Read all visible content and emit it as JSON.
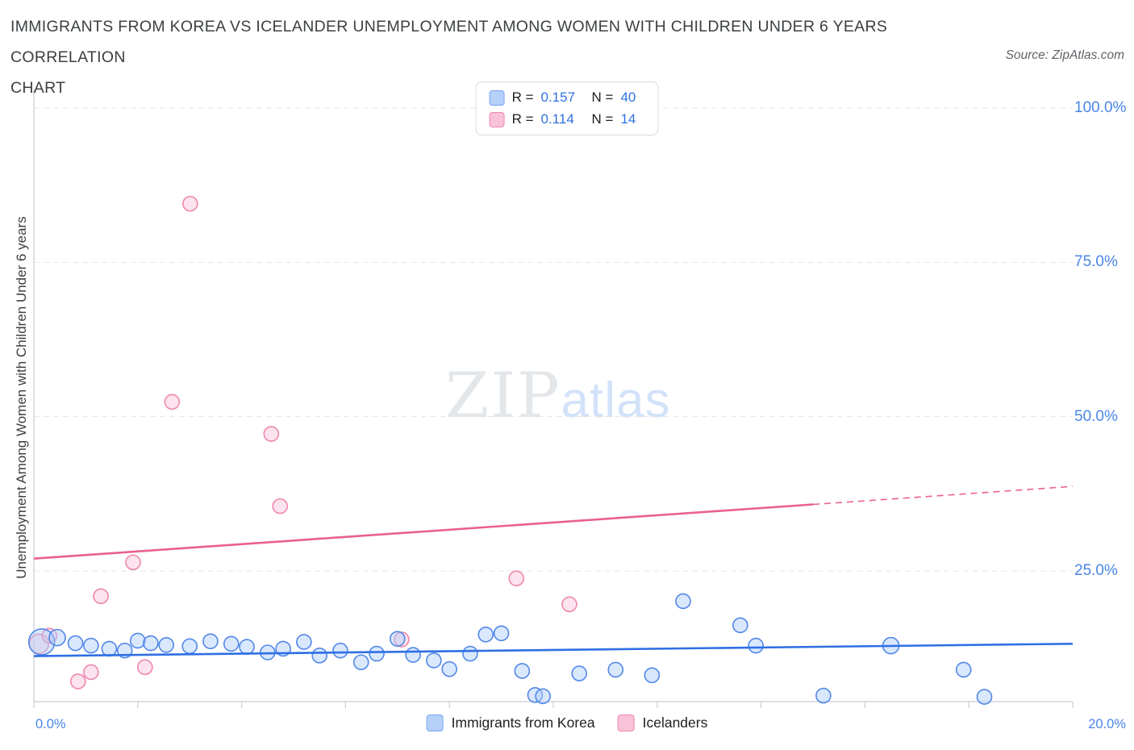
{
  "header": {
    "title_line1": "IMMIGRANTS FROM KOREA VS ICELANDER UNEMPLOYMENT AMONG WOMEN WITH CHILDREN UNDER 6 YEARS CORRELATION",
    "title_line2": "CHART",
    "source": "Source: ZipAtlas.com"
  },
  "watermark": {
    "zip": "ZIP",
    "atlas": "atlas"
  },
  "legend": {
    "rows": [
      {
        "series": "Immigrants from Korea",
        "r_label": "R =",
        "r_value": "0.157",
        "n_label": "N =",
        "n_value": "40"
      },
      {
        "series": "Icelanders",
        "r_label": "R =",
        "r_value": "0.114",
        "n_label": "N =",
        "n_value": "14"
      }
    ]
  },
  "axis": {
    "y_label": "Unemployment Among Women with Children Under 6 years",
    "y_ticks": [
      "100.0%",
      "75.0%",
      "50.0%",
      "25.0%"
    ],
    "x_min_label": "0.0%",
    "x_max_label": "20.0%"
  },
  "bottom_legend": [
    {
      "label": "Immigrants from Korea"
    },
    {
      "label": "Icelanders"
    }
  ],
  "chart_data": {
    "type": "scatter",
    "title": "Immigrants from Korea vs Icelander Unemployment Among Women with Children Under 6 years Correlation",
    "xlabel": "Immigrants from Korea (%)",
    "ylabel": "Unemployment Among Women with Children Under 6 years (%)",
    "xlim": [
      0,
      20
    ],
    "ylim": [
      0,
      100
    ],
    "gridlines_y": [
      25,
      50,
      75,
      100
    ],
    "x_tick_step": 2,
    "legend_position": "bottom",
    "series": [
      {
        "name": "Icelanders",
        "stroke": "#ef87ae",
        "fill": "#f9c2d8",
        "points": [
          [
            0.1,
            13.2,
            12
          ],
          [
            0.3,
            14.5,
            9
          ],
          [
            0.85,
            7.1,
            9
          ],
          [
            1.1,
            8.6,
            9
          ],
          [
            1.29,
            20.9,
            9
          ],
          [
            1.91,
            26.4,
            9
          ],
          [
            2.14,
            9.4,
            9
          ],
          [
            2.66,
            52.4,
            9
          ],
          [
            3.01,
            84.5,
            9
          ],
          [
            4.57,
            47.2,
            9
          ],
          [
            4.74,
            35.5,
            9
          ],
          [
            7.08,
            13.9,
            9
          ],
          [
            9.29,
            23.8,
            9
          ],
          [
            10.31,
            19.6,
            9
          ]
        ],
        "trend": {
          "x0": 0,
          "y0": 27.0,
          "x1": 20,
          "y1": 38.7,
          "dash_from": 15.0,
          "color": "#ea6090"
        }
      },
      {
        "name": "Immigrants from Korea",
        "stroke": "#5288e8",
        "fill": "#aecbfa",
        "points": [
          [
            0.15,
            13.5,
            16
          ],
          [
            0.45,
            14.2,
            10
          ],
          [
            0.8,
            13.3,
            9
          ],
          [
            1.1,
            12.9,
            9
          ],
          [
            1.45,
            12.4,
            9
          ],
          [
            1.75,
            12.1,
            9
          ],
          [
            2.0,
            13.7,
            9
          ],
          [
            2.25,
            13.3,
            9
          ],
          [
            2.55,
            13.0,
            9
          ],
          [
            3.0,
            12.8,
            9
          ],
          [
            3.4,
            13.6,
            9
          ],
          [
            3.8,
            13.2,
            9
          ],
          [
            4.1,
            12.7,
            9
          ],
          [
            4.5,
            11.8,
            9
          ],
          [
            4.8,
            12.4,
            9
          ],
          [
            5.2,
            13.5,
            9
          ],
          [
            5.5,
            11.3,
            9
          ],
          [
            5.9,
            12.1,
            9
          ],
          [
            6.3,
            10.2,
            9
          ],
          [
            6.6,
            11.6,
            9
          ],
          [
            7.0,
            14.0,
            9
          ],
          [
            7.3,
            11.4,
            9
          ],
          [
            7.7,
            10.5,
            9
          ],
          [
            8.0,
            9.1,
            9
          ],
          [
            8.4,
            11.6,
            9
          ],
          [
            8.7,
            14.7,
            9
          ],
          [
            9.0,
            14.9,
            9
          ],
          [
            9.4,
            8.8,
            9
          ],
          [
            9.65,
            4.9,
            9
          ],
          [
            9.8,
            4.7,
            9
          ],
          [
            10.5,
            8.4,
            9
          ],
          [
            11.2,
            9.0,
            9
          ],
          [
            11.9,
            8.1,
            9
          ],
          [
            12.5,
            20.1,
            9
          ],
          [
            13.6,
            16.2,
            9
          ],
          [
            13.9,
            12.9,
            9
          ],
          [
            15.2,
            4.8,
            9
          ],
          [
            16.5,
            12.9,
            10
          ],
          [
            17.9,
            9.0,
            9
          ],
          [
            18.3,
            4.6,
            9
          ]
        ],
        "trend": {
          "x0": 0,
          "y0": 11.2,
          "x1": 20,
          "y1": 13.2,
          "dash_from": 20,
          "color": "#2f6fe4"
        }
      }
    ]
  }
}
